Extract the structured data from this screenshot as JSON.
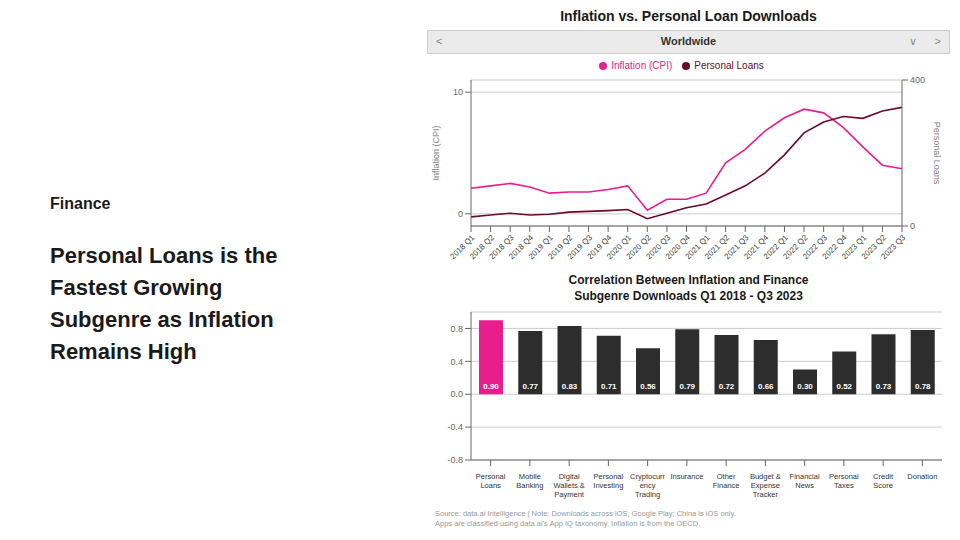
{
  "chart_data": [
    {
      "type": "line",
      "title": "Inflation vs. Personal Loan Downloads",
      "annotations": [
        "Finance",
        "Personal Loans is the\nFastest Growing\nSubgenre as Inflation\nRemains High",
        "Worldwide",
        "<",
        ">",
        "∨"
      ],
      "categories": [
        "2018 Q1",
        "2018 Q2",
        "2018 Q3",
        "2018 Q4",
        "2019 Q1",
        "2019 Q2",
        "2019 Q3",
        "2019 Q4",
        "2020 Q1",
        "2020 Q2",
        "2020 Q3",
        "2020 Q4",
        "2021 Q1",
        "2021 Q2",
        "2021 Q3",
        "2021 Q4",
        "2022 Q1",
        "2022 Q2",
        "2022 Q3",
        "2022 Q4",
        "2023 Q1",
        "2023 Q2",
        "2023 Q3"
      ],
      "series": [
        {
          "name": "Inflation (CPI)",
          "color": "#e91e8c",
          "values": [
            2.1,
            2.3,
            2.5,
            2.2,
            1.7,
            1.8,
            1.8,
            2.0,
            2.3,
            0.3,
            1.2,
            1.2,
            1.7,
            4.2,
            5.3,
            6.8,
            7.9,
            8.6,
            8.3,
            7.1,
            5.5,
            4.0,
            3.7
          ]
        },
        {
          "name": "Personal Loans",
          "color": "#6b0a2a",
          "axis": "y2",
          "values": [
            25,
            30,
            35,
            30,
            32,
            38,
            40,
            42,
            45,
            20,
            35,
            50,
            60,
            85,
            110,
            145,
            195,
            255,
            285,
            300,
            295,
            315,
            325
          ]
        }
      ],
      "ylabel": "Inflation (CPI)",
      "y2label": "Personal Loans",
      "ylim": [
        -1,
        11
      ],
      "yticks": [
        0,
        10
      ],
      "y2lim": [
        0,
        400
      ],
      "y2ticks": [
        0,
        400
      ],
      "grid": true,
      "legend": "top"
    },
    {
      "type": "bar",
      "title": "Correlation Between Inflation and Finance\nSubgenre Downloads Q1 2018 - Q3 2023",
      "annotations": [
        "Source: data.ai Intelligence | Note: Downloads across iOS, Google Play; China is iOS only.\nApps are classified using data.ai’s App IQ taxonomy. Inflation is from the OECD."
      ],
      "categories": [
        "Personal\nLoans",
        "Mobile\nBanking",
        "Digital\nWallets &\nPayment",
        "Personal\nInvesting",
        "Cryptocurr\nency\nTrading",
        "Insurance",
        "Other\nFinance",
        "Budget &\nExpense\nTracker",
        "Financial\nNews",
        "Personal\nTaxes",
        "Credit\nScore",
        "Donation"
      ],
      "values": [
        0.9,
        0.77,
        0.83,
        0.71,
        0.56,
        0.79,
        0.72,
        0.66,
        0.3,
        0.52,
        0.73,
        0.78
      ],
      "value_labels": [
        "0.90",
        "0.77",
        "0.83",
        "0.71",
        "0.56",
        "0.79",
        "0.72",
        "0.66",
        "0.30",
        "0.52",
        "0.73",
        "0.78"
      ],
      "colors": [
        "#e91e8c",
        "#2d2d2d",
        "#2d2d2d",
        "#2d2d2d",
        "#2d2d2d",
        "#2d2d2d",
        "#2d2d2d",
        "#2d2d2d",
        "#2d2d2d",
        "#2d2d2d",
        "#2d2d2d",
        "#2d2d2d"
      ],
      "ylim": [
        -0.8,
        1.0
      ],
      "yticks": [
        -0.8,
        -0.4,
        {
          "value": 0,
          "label": "0.0"
        },
        0.4,
        0.8
      ],
      "grid": true,
      "data_labels": true
    }
  ]
}
